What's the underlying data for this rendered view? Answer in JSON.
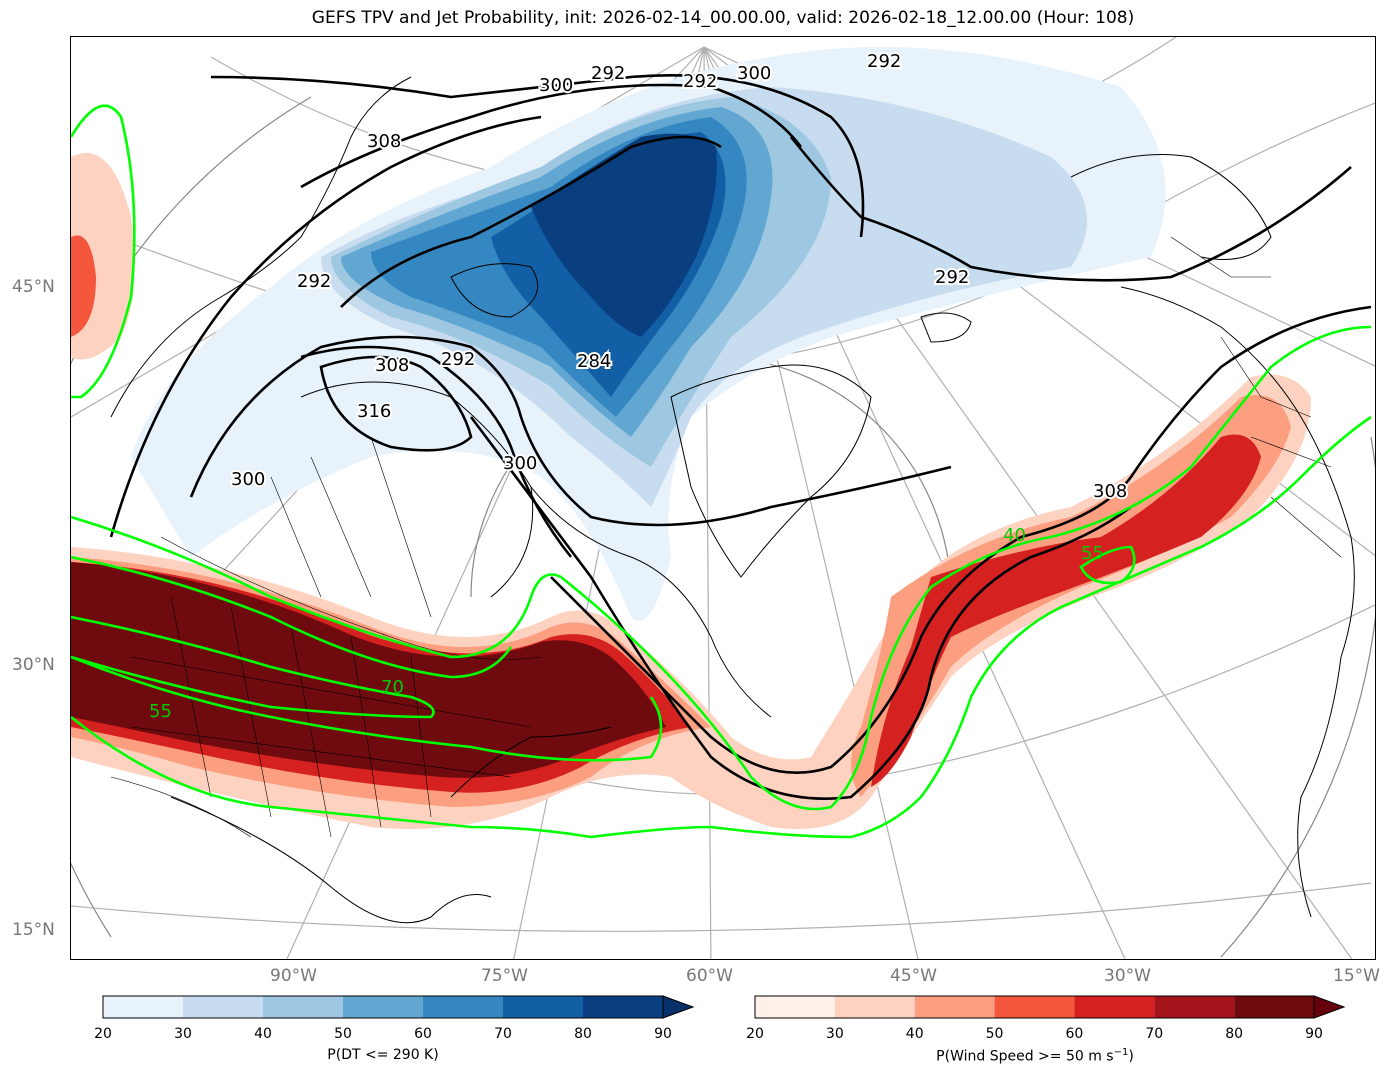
{
  "title": "GEFS TPV and Jet Probability, init: 2026-02-14_00.00.00, valid: 2026-02-18_12.00.00 (Hour: 108)",
  "lat_labels": [
    "45°N",
    "30°N",
    "15°N"
  ],
  "lon_labels": [
    "90°W",
    "75°W",
    "60°W",
    "45°W",
    "30°W",
    "15°W"
  ],
  "theta_contours": {
    "color": "#000000",
    "labels": [
      "300",
      "292",
      "292",
      "300",
      "308",
      "292",
      "292",
      "292",
      "308",
      "292",
      "284",
      "316",
      "300",
      "300",
      "308"
    ]
  },
  "jet_contours": {
    "color": "#00ff00",
    "labels": [
      "70",
      "55",
      "40",
      "55"
    ]
  },
  "colorbar_tpv": {
    "label": "P(DT <= 290 K)",
    "ticks": [
      "20",
      "30",
      "40",
      "50",
      "60",
      "70",
      "80",
      "90"
    ],
    "colors": [
      "#e8f2fb",
      "#c8dcef",
      "#9ec8e1",
      "#62a7d2",
      "#3587c1",
      "#125fa6",
      "#0a3f7f"
    ],
    "extend_color": "#08306b"
  },
  "colorbar_jet": {
    "label_main": "P(Wind Speed >= 50 m s",
    "label_sup": "−1",
    "label_end": ")",
    "ticks": [
      "20",
      "30",
      "40",
      "50",
      "60",
      "70",
      "80",
      "90"
    ],
    "colors": [
      "#fff0ea",
      "#fdd2c0",
      "#fc9e80",
      "#f5573d",
      "#d52221",
      "#a5131b",
      "#6f0a0f"
    ],
    "extend_color": "#67000d"
  }
}
